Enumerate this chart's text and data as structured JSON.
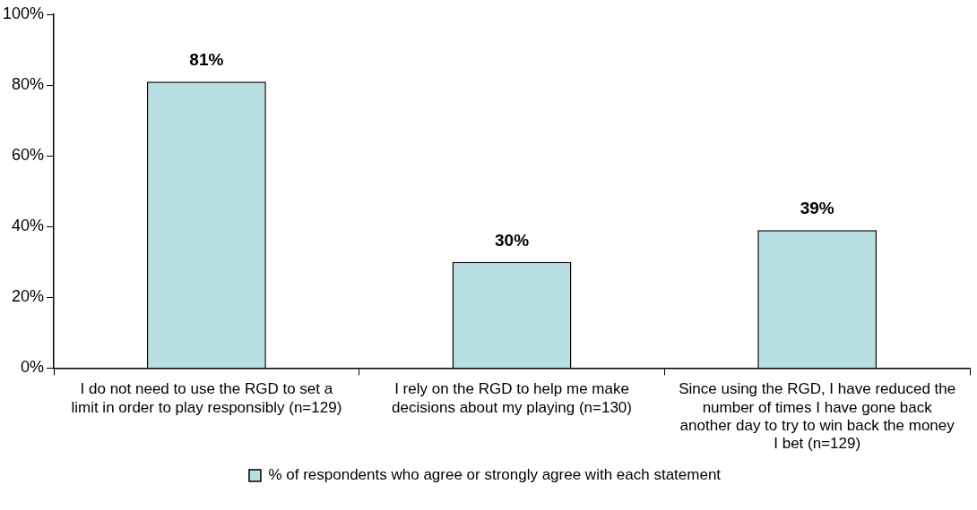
{
  "chart_data": {
    "type": "bar",
    "categories": [
      "I do not need to use the RGD to set a limit in order to play responsibly (n=129)",
      "I rely on the RGD to help me make decisions about my playing (n=130)",
      "Since using the RGD, I have reduced the number of times I have gone back another day to try to win back the money I bet (n=129)"
    ],
    "series": [
      {
        "name": "% of respondents who agree or strongly agree with each statement",
        "color": "#b7dee1",
        "values": [
          81,
          30,
          39
        ]
      }
    ],
    "value_labels": [
      "81%",
      "30%",
      "39%"
    ],
    "ylim": [
      0,
      100
    ],
    "yticks": [
      {
        "value": 0,
        "label": "0%"
      },
      {
        "value": 20,
        "label": "20%"
      },
      {
        "value": 40,
        "label": "40%"
      },
      {
        "value": 60,
        "label": "60%"
      },
      {
        "value": 80,
        "label": "80%"
      },
      {
        "value": 100,
        "label": "100%"
      }
    ],
    "legend": "bottom"
  }
}
